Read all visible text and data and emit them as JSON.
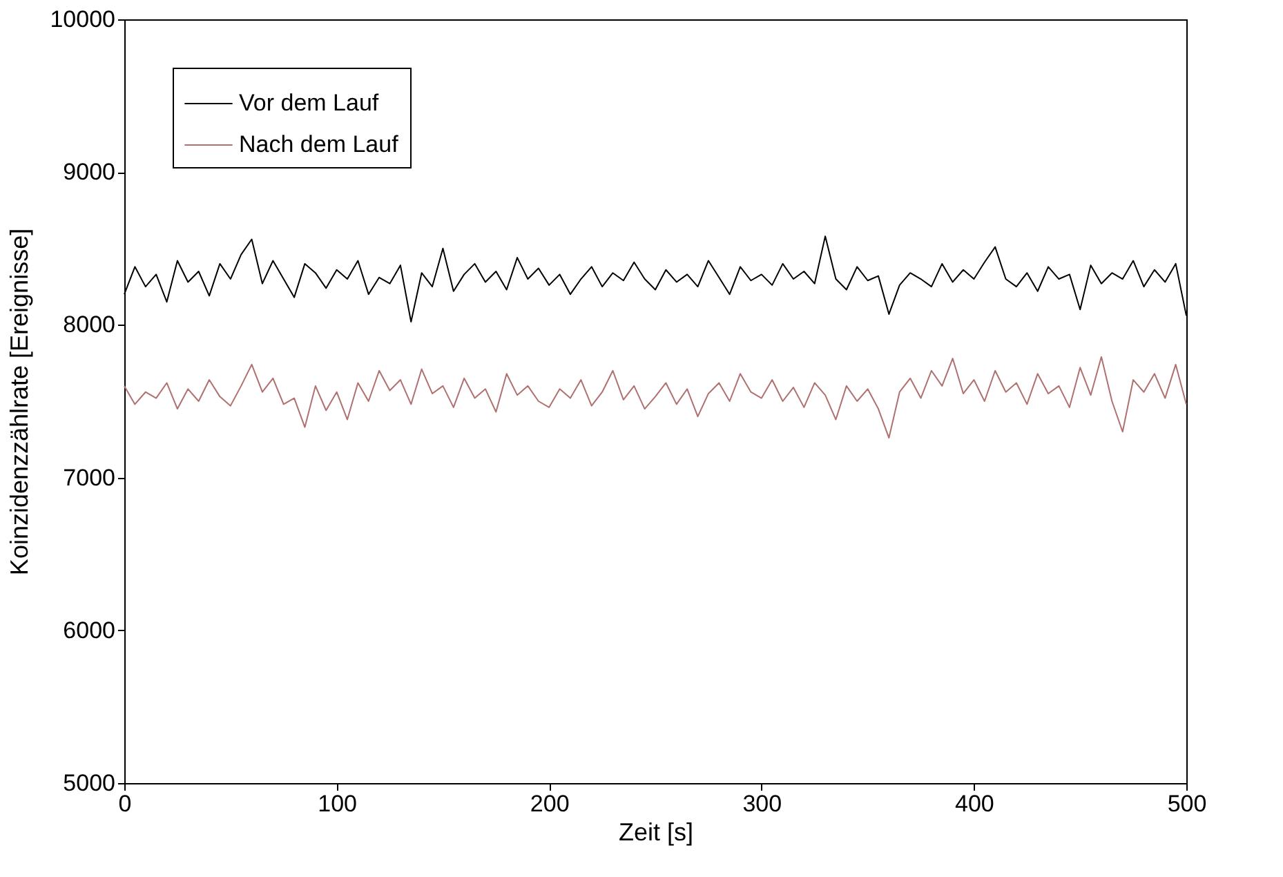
{
  "chart_data": {
    "type": "line",
    "xlabel": "Zeit [s]",
    "ylabel": "Koinzidenzzählrate [Ereignisse]",
    "x": [
      0,
      5,
      10,
      15,
      20,
      25,
      30,
      35,
      40,
      45,
      50,
      55,
      60,
      65,
      70,
      75,
      80,
      85,
      90,
      95,
      100,
      105,
      110,
      115,
      120,
      125,
      130,
      135,
      140,
      145,
      150,
      155,
      160,
      165,
      170,
      175,
      180,
      185,
      190,
      195,
      200,
      205,
      210,
      215,
      220,
      225,
      230,
      235,
      240,
      245,
      250,
      255,
      260,
      265,
      270,
      275,
      280,
      285,
      290,
      295,
      300,
      305,
      310,
      315,
      320,
      325,
      330,
      335,
      340,
      345,
      350,
      355,
      360,
      365,
      370,
      375,
      380,
      385,
      390,
      395,
      400,
      405,
      410,
      415,
      420,
      425,
      430,
      435,
      440,
      445,
      450,
      455,
      460,
      465,
      470,
      475,
      480,
      485,
      490,
      495,
      500
    ],
    "series": [
      {
        "name": "Vor dem Lauf",
        "color": "#000000",
        "values": [
          8200,
          8380,
          8250,
          8330,
          8150,
          8420,
          8280,
          8350,
          8190,
          8400,
          8300,
          8460,
          8560,
          8270,
          8420,
          8300,
          8180,
          8400,
          8340,
          8240,
          8360,
          8300,
          8420,
          8200,
          8310,
          8270,
          8390,
          8020,
          8340,
          8250,
          8500,
          8220,
          8330,
          8400,
          8280,
          8350,
          8230,
          8440,
          8300,
          8370,
          8260,
          8330,
          8200,
          8300,
          8380,
          8250,
          8340,
          8290,
          8410,
          8300,
          8230,
          8360,
          8280,
          8330,
          8250,
          8420,
          8310,
          8200,
          8380,
          8290,
          8330,
          8260,
          8400,
          8300,
          8350,
          8270,
          8580,
          8300,
          8230,
          8380,
          8290,
          8320,
          8070,
          8260,
          8340,
          8300,
          8250,
          8400,
          8280,
          8360,
          8300,
          8410,
          8510,
          8300,
          8250,
          8340,
          8220,
          8380,
          8300,
          8330,
          8100,
          8390,
          8270,
          8340,
          8300,
          8420,
          8250,
          8360,
          8280,
          8400,
          8060
        ]
      },
      {
        "name": "Nach dem Lauf",
        "color": "#b07070",
        "values": [
          7600,
          7480,
          7560,
          7520,
          7620,
          7450,
          7580,
          7500,
          7640,
          7530,
          7470,
          7600,
          7740,
          7560,
          7650,
          7480,
          7520,
          7330,
          7600,
          7440,
          7560,
          7380,
          7620,
          7500,
          7700,
          7570,
          7640,
          7480,
          7710,
          7550,
          7600,
          7460,
          7650,
          7520,
          7580,
          7430,
          7680,
          7540,
          7600,
          7500,
          7460,
          7580,
          7520,
          7640,
          7470,
          7560,
          7700,
          7510,
          7600,
          7450,
          7530,
          7620,
          7480,
          7580,
          7400,
          7550,
          7620,
          7500,
          7680,
          7560,
          7520,
          7640,
          7500,
          7590,
          7460,
          7620,
          7540,
          7380,
          7600,
          7500,
          7580,
          7450,
          7260,
          7560,
          7650,
          7520,
          7700,
          7600,
          7780,
          7550,
          7640,
          7500,
          7700,
          7560,
          7620,
          7480,
          7680,
          7550,
          7600,
          7460,
          7720,
          7540,
          7790,
          7500,
          7300,
          7640,
          7560,
          7680,
          7520,
          7740,
          7480
        ]
      }
    ],
    "xlim": [
      0,
      500
    ],
    "xticks": [
      0,
      100,
      200,
      300,
      400,
      500
    ],
    "ylim": [
      5000,
      10000
    ],
    "yticks": [
      5000,
      6000,
      7000,
      8000,
      9000,
      10000
    ],
    "grid": false,
    "legend": "top left",
    "marker": "none",
    "line_style": "solid"
  }
}
